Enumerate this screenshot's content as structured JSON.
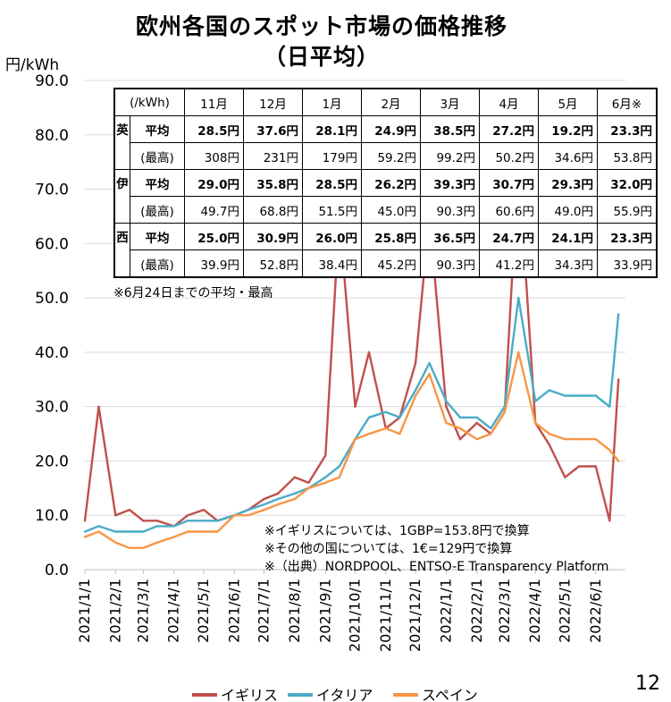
{
  "title_line1": "欧州各国のスポット市場の価格推移",
  "title_line2": "（日平均）",
  "page_number": "12",
  "chart_data": {
    "type": "line",
    "ylabel": "円/kWh",
    "ylim": [
      0,
      90
    ],
    "yticks": [
      "0.0",
      "10.0",
      "20.0",
      "30.0",
      "40.0",
      "50.0",
      "60.0",
      "70.0",
      "80.0",
      "90.0"
    ],
    "xticks": [
      "2021/1/1",
      "2021/2/1",
      "2021/3/1",
      "2021/4/1",
      "2021/5/1",
      "2021/6/1",
      "2021/7/1",
      "2021/8/1",
      "2021/9/1",
      "2021/10/1",
      "2021/11/1",
      "2021/12/1",
      "2022/1/1",
      "2022/2/1",
      "2022/3/1",
      "2022/4/1",
      "2022/5/1",
      "2022/6/1"
    ],
    "x": [
      "2021-01-01",
      "2021-01-15",
      "2021-02-01",
      "2021-02-15",
      "2021-03-01",
      "2021-03-15",
      "2021-04-01",
      "2021-04-15",
      "2021-05-01",
      "2021-05-15",
      "2021-06-01",
      "2021-06-15",
      "2021-07-01",
      "2021-07-15",
      "2021-08-01",
      "2021-08-15",
      "2021-09-01",
      "2021-09-15",
      "2021-10-01",
      "2021-10-15",
      "2021-11-01",
      "2021-11-15",
      "2021-12-01",
      "2021-12-15",
      "2022-01-01",
      "2022-01-15",
      "2022-02-01",
      "2022-02-15",
      "2022-03-01",
      "2022-03-15",
      "2022-04-01",
      "2022-04-15",
      "2022-05-01",
      "2022-05-15",
      "2022-06-01",
      "2022-06-15",
      "2022-06-24"
    ],
    "series": [
      {
        "name": "イギリス",
        "color": "#c0504d",
        "values": [
          9,
          30,
          10,
          11,
          9,
          9,
          8,
          10,
          11,
          9,
          10,
          11,
          13,
          14,
          17,
          16,
          21,
          65,
          30,
          40,
          26,
          28,
          38,
          65,
          30,
          24,
          27,
          25,
          29,
          75,
          27,
          23,
          17,
          19,
          19,
          9,
          35
        ]
      },
      {
        "name": "イタリア",
        "color": "#4bacc6",
        "values": [
          7,
          8,
          7,
          7,
          7,
          8,
          8,
          9,
          9,
          9,
          10,
          11,
          12,
          13,
          14,
          15,
          17,
          19,
          24,
          28,
          29,
          28,
          33,
          38,
          31,
          28,
          28,
          26,
          30,
          50,
          31,
          33,
          32,
          32,
          32,
          30,
          47
        ]
      },
      {
        "name": "スペイン",
        "color": "#f79646",
        "values": [
          6,
          7,
          5,
          4,
          4,
          5,
          6,
          7,
          7,
          7,
          10,
          10,
          11,
          12,
          13,
          15,
          16,
          17,
          24,
          25,
          26,
          25,
          32,
          36,
          27,
          26,
          24,
          25,
          29,
          40,
          27,
          25,
          24,
          24,
          24,
          22,
          20
        ]
      }
    ]
  },
  "price_table": {
    "header": [
      "(/kWh)",
      "11月",
      "12月",
      "1月",
      "2月",
      "3月",
      "4月",
      "5月",
      "6月※"
    ],
    "rows": [
      {
        "country": "英",
        "kind": "平均",
        "values": [
          "28.5円",
          "37.6円",
          "28.1円",
          "24.9円",
          "38.5円",
          "27.2円",
          "19.2円",
          "23.3円"
        ]
      },
      {
        "country": "",
        "kind": "(最高)",
        "values": [
          "308円",
          "231円",
          "179円",
          "59.2円",
          "99.2円",
          "50.2円",
          "34.6円",
          "53.8円"
        ]
      },
      {
        "country": "伊",
        "kind": "平均",
        "values": [
          "29.0円",
          "35.8円",
          "28.5円",
          "26.2円",
          "39.3円",
          "30.7円",
          "29.3円",
          "32.0円"
        ]
      },
      {
        "country": "",
        "kind": "(最高)",
        "values": [
          "49.7円",
          "68.8円",
          "51.5円",
          "45.0円",
          "90.3円",
          "60.6円",
          "49.0円",
          "55.9円"
        ]
      },
      {
        "country": "西",
        "kind": "平均",
        "values": [
          "25.0円",
          "30.9円",
          "26.0円",
          "25.8円",
          "36.5円",
          "24.7円",
          "24.1円",
          "23.3円"
        ]
      },
      {
        "country": "",
        "kind": "(最高)",
        "values": [
          "39.9円",
          "52.8円",
          "38.4円",
          "45.2円",
          "90.3円",
          "41.2円",
          "34.3円",
          "33.9円"
        ]
      }
    ],
    "footnote": "※6月24日までの平均・最高"
  },
  "notes": [
    "※イギリスについては、1GBP=153.8円で換算",
    "※その他の国については、1€=129円で換算",
    "※（出典）NORDPOOL、ENTSO-E Transparency Platform"
  ]
}
